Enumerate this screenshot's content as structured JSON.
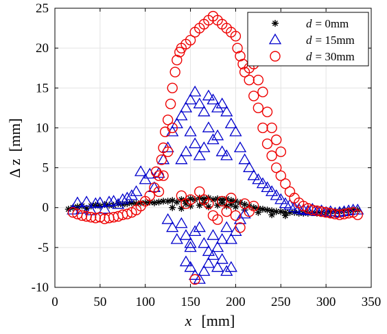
{
  "chart_data": {
    "type": "scatter",
    "title": "",
    "xlabel_var": "x",
    "xlabel_unit": "[mm]",
    "ylabel_var": "Δ z",
    "ylabel_unit": "[mm]",
    "xlim": [
      0,
      350
    ],
    "ylim": [
      -10,
      25
    ],
    "xticks": [
      "0",
      "50",
      "100",
      "150",
      "200",
      "250",
      "300",
      "350"
    ],
    "yticks": [
      "25",
      "20",
      "15",
      "10",
      "5",
      "0",
      "-5",
      "-10"
    ],
    "grid": true,
    "legend_position": "top-right",
    "series": [
      {
        "name_var": "d",
        "name_value": "= 0mm",
        "marker": "asterisk",
        "color": "#000000",
        "points": [
          [
            15,
            -0.2
          ],
          [
            20,
            0.0
          ],
          [
            25,
            0.1
          ],
          [
            30,
            0.2
          ],
          [
            35,
            -0.1
          ],
          [
            40,
            0.2
          ],
          [
            45,
            0.3
          ],
          [
            50,
            0.2
          ],
          [
            55,
            0.4
          ],
          [
            60,
            0.3
          ],
          [
            65,
            0.3
          ],
          [
            70,
            0.5
          ],
          [
            75,
            0.4
          ],
          [
            80,
            0.5
          ],
          [
            85,
            0.6
          ],
          [
            90,
            0.5
          ],
          [
            95,
            0.6
          ],
          [
            100,
            0.6
          ],
          [
            105,
            0.7
          ],
          [
            110,
            0.6
          ],
          [
            115,
            0.7
          ],
          [
            120,
            0.8
          ],
          [
            125,
            0.8
          ],
          [
            130,
            0.9
          ],
          [
            135,
            0.7
          ],
          [
            140,
            1.0
          ],
          [
            145,
            0.9
          ],
          [
            150,
            1.1
          ],
          [
            155,
            1.0
          ],
          [
            160,
            1.2
          ],
          [
            165,
            1.1
          ],
          [
            170,
            1.2
          ],
          [
            175,
            1.0
          ],
          [
            180,
            1.1
          ],
          [
            185,
            1.0
          ],
          [
            190,
            1.1
          ],
          [
            195,
            0.9
          ],
          [
            200,
            0.8
          ],
          [
            205,
            0.6
          ],
          [
            210,
            0.4
          ],
          [
            215,
            0.2
          ],
          [
            220,
            0.0
          ],
          [
            225,
            -0.1
          ],
          [
            230,
            -0.2
          ],
          [
            235,
            -0.3
          ],
          [
            240,
            -0.4
          ],
          [
            245,
            -0.5
          ],
          [
            250,
            -0.5
          ],
          [
            255,
            -0.6
          ],
          [
            260,
            -0.6
          ],
          [
            265,
            -0.6
          ],
          [
            270,
            -0.7
          ],
          [
            275,
            -0.7
          ],
          [
            280,
            -0.7
          ],
          [
            285,
            -0.6
          ],
          [
            290,
            -0.7
          ],
          [
            295,
            -0.6
          ],
          [
            300,
            -0.6
          ],
          [
            305,
            -0.5
          ],
          [
            310,
            -0.5
          ],
          [
            315,
            -0.5
          ],
          [
            320,
            -0.4
          ],
          [
            325,
            -0.4
          ],
          [
            330,
            -0.3
          ],
          [
            335,
            -0.3
          ],
          [
            130,
            0.0
          ],
          [
            140,
            -0.1
          ],
          [
            150,
            0.2
          ],
          [
            160,
            0.3
          ],
          [
            170,
            0.1
          ],
          [
            180,
            0.3
          ],
          [
            190,
            0.2
          ],
          [
            200,
            0.1
          ],
          [
            145,
            0.5
          ],
          [
            165,
            0.6
          ],
          [
            185,
            0.6
          ],
          [
            195,
            0.4
          ],
          [
            210,
            -0.3
          ],
          [
            225,
            -0.6
          ],
          [
            240,
            -0.9
          ],
          [
            255,
            -1.0
          ]
        ]
      },
      {
        "name_var": "d",
        "name_value": "= 15mm",
        "marker": "triangle",
        "color": "#0000cc",
        "points": [
          [
            20,
            -0.3
          ],
          [
            25,
            0.6
          ],
          [
            30,
            -0.2
          ],
          [
            35,
            0.7
          ],
          [
            40,
            -0.4
          ],
          [
            45,
            0.5
          ],
          [
            50,
            0.6
          ],
          [
            55,
            -0.2
          ],
          [
            60,
            0.7
          ],
          [
            65,
            0.8
          ],
          [
            70,
            0.4
          ],
          [
            75,
            1.0
          ],
          [
            80,
            1.2
          ],
          [
            85,
            1.5
          ],
          [
            90,
            2.0
          ],
          [
            95,
            4.5
          ],
          [
            100,
            3.5
          ],
          [
            105,
            4.2
          ],
          [
            110,
            2.5
          ],
          [
            115,
            4.3
          ],
          [
            120,
            6.0
          ],
          [
            125,
            7.5
          ],
          [
            125,
            -1.5
          ],
          [
            130,
            9.5
          ],
          [
            130,
            -2.5
          ],
          [
            135,
            10.5
          ],
          [
            135,
            -4.0
          ],
          [
            140,
            11.5
          ],
          [
            140,
            6.0
          ],
          [
            140,
            -2.0
          ],
          [
            145,
            12.5
          ],
          [
            145,
            7.0
          ],
          [
            145,
            -3.5
          ],
          [
            145,
            -6.8
          ],
          [
            150,
            13.5
          ],
          [
            150,
            9.5
          ],
          [
            150,
            -4.5
          ],
          [
            150,
            -7.5
          ],
          [
            150,
            -5.0
          ],
          [
            155,
            14.5
          ],
          [
            155,
            8.0
          ],
          [
            155,
            -3.0
          ],
          [
            155,
            -8.5
          ],
          [
            160,
            13.0
          ],
          [
            160,
            6.5
          ],
          [
            160,
            -2.5
          ],
          [
            160,
            -9.0
          ],
          [
            165,
            12.0
          ],
          [
            165,
            7.5
          ],
          [
            165,
            -4.5
          ],
          [
            165,
            -8.0
          ],
          [
            170,
            14.0
          ],
          [
            170,
            10.0
          ],
          [
            170,
            -5.5
          ],
          [
            170,
            -7.0
          ],
          [
            175,
            13.5
          ],
          [
            175,
            8.5
          ],
          [
            175,
            -3.5
          ],
          [
            175,
            -6.0
          ],
          [
            180,
            12.5
          ],
          [
            180,
            9.0
          ],
          [
            180,
            -7.5
          ],
          [
            180,
            -5.0
          ],
          [
            185,
            13.0
          ],
          [
            185,
            7.0
          ],
          [
            185,
            -6.5
          ],
          [
            185,
            -4.0
          ],
          [
            190,
            12.0
          ],
          [
            190,
            6.5
          ],
          [
            190,
            -8.0
          ],
          [
            190,
            -2.5
          ],
          [
            195,
            10.5
          ],
          [
            195,
            -4.0
          ],
          [
            195,
            -7.5
          ],
          [
            200,
            9.5
          ],
          [
            200,
            -3.0
          ],
          [
            205,
            7.5
          ],
          [
            205,
            -1.5
          ],
          [
            210,
            6.0
          ],
          [
            210,
            -0.8
          ],
          [
            215,
            5.0
          ],
          [
            220,
            4.0
          ],
          [
            225,
            3.5
          ],
          [
            230,
            3.0
          ],
          [
            235,
            2.5
          ],
          [
            240,
            2.0
          ],
          [
            245,
            1.5
          ],
          [
            250,
            1.0
          ],
          [
            255,
            0.5
          ],
          [
            260,
            0.3
          ],
          [
            265,
            0.0
          ],
          [
            270,
            -0.2
          ],
          [
            275,
            -0.3
          ],
          [
            280,
            -0.4
          ],
          [
            285,
            -0.2
          ],
          [
            290,
            -0.5
          ],
          [
            295,
            -0.4
          ],
          [
            300,
            -0.6
          ],
          [
            305,
            -0.5
          ],
          [
            310,
            -0.7
          ],
          [
            315,
            -0.6
          ],
          [
            320,
            -0.5
          ],
          [
            325,
            -0.4
          ],
          [
            330,
            -0.3
          ],
          [
            335,
            -0.3
          ]
        ]
      },
      {
        "name_var": "d",
        "name_value": "= 30mm",
        "marker": "circle",
        "color": "#ee0000",
        "points": [
          [
            20,
            -0.6
          ],
          [
            25,
            -0.8
          ],
          [
            30,
            -1.0
          ],
          [
            35,
            -1.1
          ],
          [
            40,
            -1.2
          ],
          [
            45,
            -1.3
          ],
          [
            50,
            -1.2
          ],
          [
            55,
            -1.4
          ],
          [
            60,
            -1.3
          ],
          [
            65,
            -1.2
          ],
          [
            70,
            -1.1
          ],
          [
            75,
            -0.9
          ],
          [
            80,
            -0.8
          ],
          [
            85,
            -0.6
          ],
          [
            90,
            -0.3
          ],
          [
            95,
            0.2
          ],
          [
            100,
            0.8
          ],
          [
            105,
            1.5
          ],
          [
            110,
            2.5
          ],
          [
            112,
            4.5
          ],
          [
            115,
            4.0
          ],
          [
            118,
            6.0
          ],
          [
            120,
            7.5
          ],
          [
            122,
            9.5
          ],
          [
            125,
            11.0
          ],
          [
            128,
            13.0
          ],
          [
            130,
            15.0
          ],
          [
            133,
            17.0
          ],
          [
            135,
            18.5
          ],
          [
            138,
            19.5
          ],
          [
            140,
            20.0
          ],
          [
            145,
            20.5
          ],
          [
            150,
            21.0
          ],
          [
            155,
            22.0
          ],
          [
            160,
            22.5
          ],
          [
            165,
            23.0
          ],
          [
            170,
            23.5
          ],
          [
            175,
            24.0
          ],
          [
            180,
            23.5
          ],
          [
            185,
            23.0
          ],
          [
            190,
            22.5
          ],
          [
            195,
            22.0
          ],
          [
            200,
            21.5
          ],
          [
            202,
            20.0
          ],
          [
            205,
            19.0
          ],
          [
            208,
            18.0
          ],
          [
            210,
            17.0
          ],
          [
            215,
            16.0
          ],
          [
            220,
            14.0
          ],
          [
            225,
            12.5
          ],
          [
            230,
            10.0
          ],
          [
            235,
            8.0
          ],
          [
            240,
            6.5
          ],
          [
            245,
            5.0
          ],
          [
            250,
            4.0
          ],
          [
            255,
            3.0
          ],
          [
            260,
            2.0
          ],
          [
            265,
            1.2
          ],
          [
            270,
            0.6
          ],
          [
            275,
            0.2
          ],
          [
            280,
            -0.1
          ],
          [
            285,
            -0.3
          ],
          [
            290,
            -0.4
          ],
          [
            295,
            -0.5
          ],
          [
            300,
            -0.6
          ],
          [
            305,
            -0.7
          ],
          [
            310,
            -0.8
          ],
          [
            315,
            -0.9
          ],
          [
            320,
            -0.8
          ],
          [
            325,
            -0.7
          ],
          [
            330,
            -0.6
          ],
          [
            335,
            -0.9
          ],
          [
            140,
            1.5
          ],
          [
            145,
            0.5
          ],
          [
            150,
            1.0
          ],
          [
            155,
            -9.0
          ],
          [
            160,
            2.0
          ],
          [
            165,
            1.0
          ],
          [
            170,
            0.5
          ],
          [
            175,
            -1.0
          ],
          [
            180,
            -1.5
          ],
          [
            185,
            0.8
          ],
          [
            190,
            -0.5
          ],
          [
            195,
            1.2
          ],
          [
            200,
            -1.0
          ],
          [
            205,
            -2.5
          ],
          [
            210,
            0.5
          ],
          [
            215,
            -0.5
          ],
          [
            220,
            0.2
          ],
          [
            130,
            10.0
          ],
          [
            125,
            7.0
          ],
          [
            120,
            4.0
          ],
          [
            115,
            2.0
          ],
          [
            240,
            10.0
          ],
          [
            245,
            8.5
          ],
          [
            250,
            7.0
          ],
          [
            230,
            14.5
          ],
          [
            225,
            16.0
          ],
          [
            235,
            12.0
          ],
          [
            215,
            17.5
          ],
          [
            220,
            18.0
          ]
        ]
      }
    ]
  }
}
